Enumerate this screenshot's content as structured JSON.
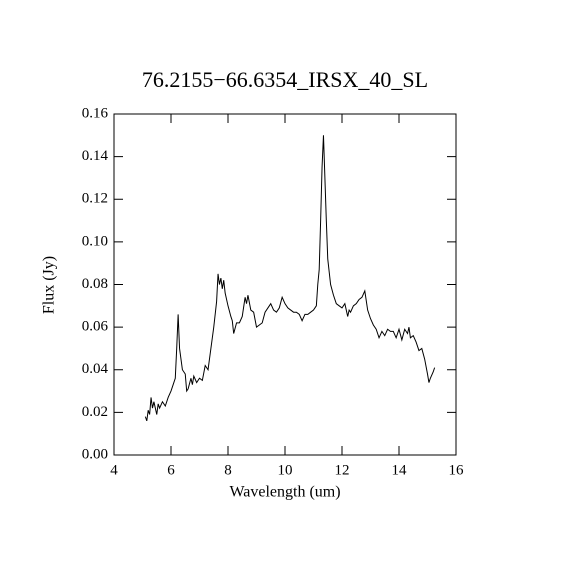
{
  "chart_data": {
    "type": "line",
    "title": "76.2155−66.6354_IRSX_40_SL",
    "xlabel": "Wavelength (um)",
    "ylabel": "Flux (Jy)",
    "xlim": [
      4,
      16
    ],
    "xticks": [
      4,
      6,
      8,
      10,
      12,
      14,
      16
    ],
    "ylim": [
      0,
      0.16
    ],
    "yticks": [
      {
        "value": 0,
        "label": "0.00"
      },
      0.02,
      0.04,
      0.06,
      0.08,
      {
        "value": 0.1,
        "label": "0.10"
      },
      0.12,
      0.14,
      0.16
    ],
    "series": [
      {
        "color": "#000000",
        "x": [
          5.1,
          5.15,
          5.2,
          5.25,
          5.3,
          5.35,
          5.4,
          5.5,
          5.55,
          5.6,
          5.7,
          5.8,
          5.9,
          6.0,
          6.1,
          6.15,
          6.2,
          6.25,
          6.3,
          6.4,
          6.5,
          6.55,
          6.6,
          6.7,
          6.75,
          6.8,
          6.9,
          7.0,
          7.1,
          7.2,
          7.3,
          7.4,
          7.5,
          7.6,
          7.65,
          7.7,
          7.75,
          7.8,
          7.85,
          7.9,
          8.0,
          8.1,
          8.15,
          8.2,
          8.3,
          8.4,
          8.5,
          8.6,
          8.65,
          8.7,
          8.8,
          8.9,
          9.0,
          9.1,
          9.2,
          9.3,
          9.4,
          9.5,
          9.6,
          9.7,
          9.8,
          9.9,
          10.0,
          10.1,
          10.2,
          10.3,
          10.4,
          10.5,
          10.6,
          10.7,
          10.8,
          10.9,
          11.0,
          11.1,
          11.15,
          11.2,
          11.25,
          11.3,
          11.35,
          11.4,
          11.45,
          11.5,
          11.6,
          11.7,
          11.8,
          11.9,
          12.0,
          12.1,
          12.2,
          12.25,
          12.3,
          12.4,
          12.5,
          12.6,
          12.7,
          12.8,
          12.9,
          13.0,
          13.1,
          13.2,
          13.3,
          13.4,
          13.5,
          13.6,
          13.7,
          13.8,
          13.9,
          14.0,
          14.1,
          14.2,
          14.3,
          14.35,
          14.4,
          14.5,
          14.6,
          14.7,
          14.8,
          14.9,
          15.0,
          15.05,
          15.1,
          15.2,
          15.25
        ],
        "values": [
          0.018,
          0.016,
          0.021,
          0.019,
          0.027,
          0.022,
          0.025,
          0.019,
          0.024,
          0.022,
          0.025,
          0.023,
          0.027,
          0.03,
          0.034,
          0.036,
          0.05,
          0.066,
          0.05,
          0.04,
          0.038,
          0.03,
          0.031,
          0.036,
          0.033,
          0.037,
          0.034,
          0.036,
          0.035,
          0.042,
          0.04,
          0.05,
          0.06,
          0.072,
          0.085,
          0.08,
          0.083,
          0.078,
          0.082,
          0.076,
          0.07,
          0.065,
          0.063,
          0.057,
          0.062,
          0.062,
          0.065,
          0.074,
          0.071,
          0.075,
          0.068,
          0.067,
          0.06,
          0.061,
          0.062,
          0.067,
          0.069,
          0.071,
          0.068,
          0.067,
          0.069,
          0.074,
          0.071,
          0.069,
          0.068,
          0.067,
          0.067,
          0.066,
          0.063,
          0.066,
          0.066,
          0.067,
          0.068,
          0.07,
          0.08,
          0.087,
          0.11,
          0.135,
          0.15,
          0.13,
          0.11,
          0.092,
          0.08,
          0.075,
          0.071,
          0.07,
          0.069,
          0.071,
          0.065,
          0.068,
          0.067,
          0.07,
          0.071,
          0.073,
          0.074,
          0.077,
          0.068,
          0.064,
          0.061,
          0.059,
          0.055,
          0.058,
          0.056,
          0.059,
          0.058,
          0.058,
          0.055,
          0.059,
          0.054,
          0.059,
          0.057,
          0.06,
          0.055,
          0.056,
          0.053,
          0.049,
          0.05,
          0.045,
          0.038,
          0.034,
          0.036,
          0.039,
          0.041
        ]
      }
    ]
  }
}
